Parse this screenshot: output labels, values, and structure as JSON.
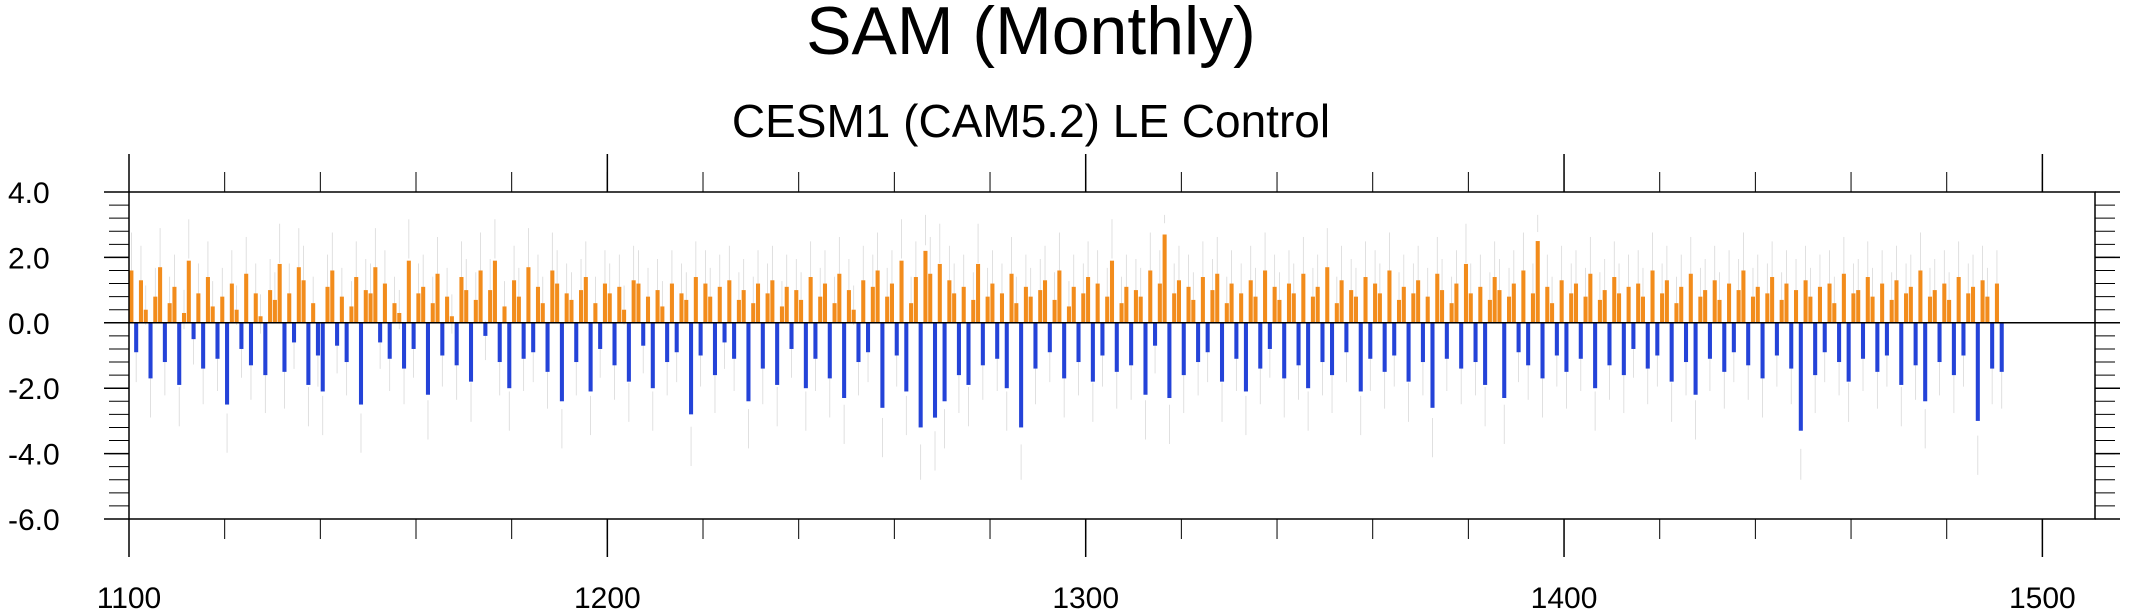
{
  "chart_data": {
    "type": "bar",
    "title": "SAM (Monthly)",
    "subtitle": "CESM1 (CAM5.2) LE Control",
    "xlabel": "",
    "ylabel": "",
    "xlim": [
      1100,
      1511
    ],
    "ylim": [
      -6.0,
      4.0
    ],
    "x_ticks": [
      1100,
      1200,
      1300,
      1400,
      1500
    ],
    "x_tick_labels": [
      "1100",
      "1200",
      "1300",
      "1400",
      "1500"
    ],
    "y_ticks": [
      4.0,
      2.0,
      0.0,
      -2.0,
      -4.0,
      -6.0
    ],
    "y_tick_labels": [
      "4.0",
      "2.0",
      "0.0",
      "-2.0",
      "-4.0",
      "-6.0"
    ],
    "grid": false,
    "legend": "none",
    "colors": {
      "positive": "#f28c1c",
      "negative": "#2443d8",
      "envelope": "#d8d8d8",
      "axis": "#000000"
    },
    "series": [
      {
        "x_start": 1100,
        "x_step": 1,
        "values": [
          1.6,
          -0.9,
          1.3,
          0.4,
          -1.7,
          0.8,
          1.7,
          -1.2,
          0.6,
          1.1,
          -1.9,
          0.3,
          1.9,
          -0.5,
          0.9,
          -1.4,
          1.4,
          0.5,
          -1.1,
          0.8,
          -2.5,
          1.2,
          0.4,
          -0.8,
          1.5,
          -1.3,
          0.9,
          0.2,
          -1.6,
          1.0,
          0.7,
          1.8,
          -1.5,
          0.9,
          -0.6,
          1.7,
          1.3,
          -1.9,
          0.6,
          -1.0,
          -2.1,
          1.1,
          1.6,
          -0.7,
          0.8,
          -1.2,
          0.5,
          1.4,
          -2.5,
          1.0,
          0.9,
          1.7,
          -0.6,
          1.2,
          -1.1,
          0.6,
          0.3,
          -1.4,
          1.9,
          -0.8,
          0.9,
          1.1,
          -2.2,
          0.6,
          1.5,
          -1.0,
          0.8,
          0.2,
          -1.3,
          1.4,
          1.0,
          -1.8,
          0.7,
          1.6,
          -0.4,
          1.0,
          1.9,
          -1.2,
          0.5,
          -2.0,
          1.3,
          0.8,
          -1.1,
          1.7,
          -0.9,
          1.1,
          0.6,
          -1.5,
          1.6,
          1.2,
          -2.4,
          0.9,
          0.7,
          -1.2,
          1.0,
          1.4,
          -2.1,
          0.6,
          -0.8,
          1.2,
          0.9,
          -1.3,
          1.1,
          0.4,
          -1.8,
          1.3,
          1.2,
          -0.7,
          0.8,
          -2.0,
          1.0,
          0.5,
          -1.2,
          1.2,
          -0.9,
          0.9,
          0.7,
          -2.8,
          1.4,
          -1.0,
          1.2,
          0.8,
          -1.6,
          1.1,
          -0.6,
          1.3,
          -1.1,
          0.7,
          1.0,
          -2.4,
          0.6,
          1.2,
          -1.4,
          0.9,
          1.3,
          -1.9,
          0.5,
          1.1,
          -0.8,
          1.0,
          0.7,
          -2.0,
          1.4,
          -1.1,
          0.8,
          1.2,
          -1.7,
          0.6,
          1.5,
          -2.3,
          1.0,
          0.4,
          -1.2,
          1.3,
          -0.9,
          1.1,
          1.6,
          -2.6,
          0.8,
          1.2,
          -1.0,
          1.9,
          -2.1,
          0.6,
          1.4,
          -3.2,
          2.2,
          1.5,
          -2.9,
          1.8,
          -2.4,
          1.3,
          0.9,
          -1.6,
          1.1,
          -1.9,
          0.7,
          1.8,
          -1.3,
          0.8,
          1.2,
          -1.1,
          0.9,
          -2.0,
          1.5,
          0.6,
          -3.2,
          1.1,
          0.8,
          -1.4,
          1.0,
          1.3,
          -0.9,
          0.7,
          1.6,
          -1.7,
          0.5,
          1.1,
          -1.2,
          0.9,
          1.4,
          -1.8,
          1.2,
          -1.0,
          0.8,
          1.9,
          -1.5,
          0.6,
          1.1,
          -1.3,
          1.0,
          0.8,
          -2.2,
          1.6,
          -0.7,
          1.2,
          2.7,
          -2.3,
          0.9,
          1.3,
          -1.6,
          1.1,
          0.7,
          -1.2,
          1.4,
          -0.9,
          1.0,
          1.5,
          -1.8,
          0.6,
          1.2,
          -1.1,
          0.9,
          -2.1,
          1.3,
          0.8,
          -1.4,
          1.6,
          -0.8,
          1.1,
          0.7,
          -1.7,
          1.2,
          0.9,
          -1.3,
          1.5,
          -2.0,
          0.8,
          1.1,
          -1.2,
          1.7,
          -1.6,
          0.6,
          1.3,
          -0.9,
          1.0,
          0.8,
          -2.1,
          1.4,
          -1.1,
          1.2,
          0.9,
          -1.5,
          1.6,
          -1.0,
          0.7,
          1.1,
          -1.8,
          0.9,
          1.3,
          -1.2,
          0.8,
          -2.6,
          1.5,
          1.0,
          -1.1,
          0.6,
          1.2,
          -1.4,
          1.8,
          0.9,
          -1.2,
          1.1,
          -1.9,
          0.7,
          1.4,
          1.0,
          -2.3,
          0.8,
          1.2,
          -0.9,
          1.6,
          -1.3,
          0.9,
          2.5,
          -1.7,
          1.1,
          0.6,
          -1.0,
          1.3,
          -1.5,
          0.9,
          1.2,
          -1.1,
          0.8,
          1.5,
          -2.0,
          0.7,
          1.0,
          -1.3,
          1.4,
          0.9,
          -1.6,
          1.1,
          -0.8,
          1.2,
          0.8,
          -1.4,
          1.6,
          -1.0,
          0.9,
          1.3,
          -1.8,
          0.6,
          1.1,
          -1.2,
          1.5,
          -2.2,
          0.8,
          1.0,
          -1.1,
          1.3,
          0.7,
          -1.5,
          1.2,
          -0.9,
          1.0,
          1.6,
          -1.3,
          0.8,
          1.1,
          -1.7,
          0.9,
          1.4,
          -1.0,
          0.7,
          1.2,
          -1.4,
          1.0,
          -3.3,
          1.3,
          0.8,
          -1.6,
          1.1,
          -0.9,
          1.2,
          0.6,
          -1.2,
          1.5,
          -1.8,
          0.9,
          1.0,
          -1.1,
          1.4,
          0.8,
          -1.5,
          1.2,
          -1.0,
          0.7,
          1.3,
          -1.9,
          0.9,
          1.1,
          -1.3,
          1.6,
          -2.4,
          0.8,
          1.0,
          -1.2,
          1.2,
          0.7,
          -1.6,
          1.4,
          -1.0,
          0.9,
          1.1,
          -3.0,
          1.3,
          0.8,
          -1.4,
          1.2,
          -1.5
        ]
      }
    ]
  }
}
